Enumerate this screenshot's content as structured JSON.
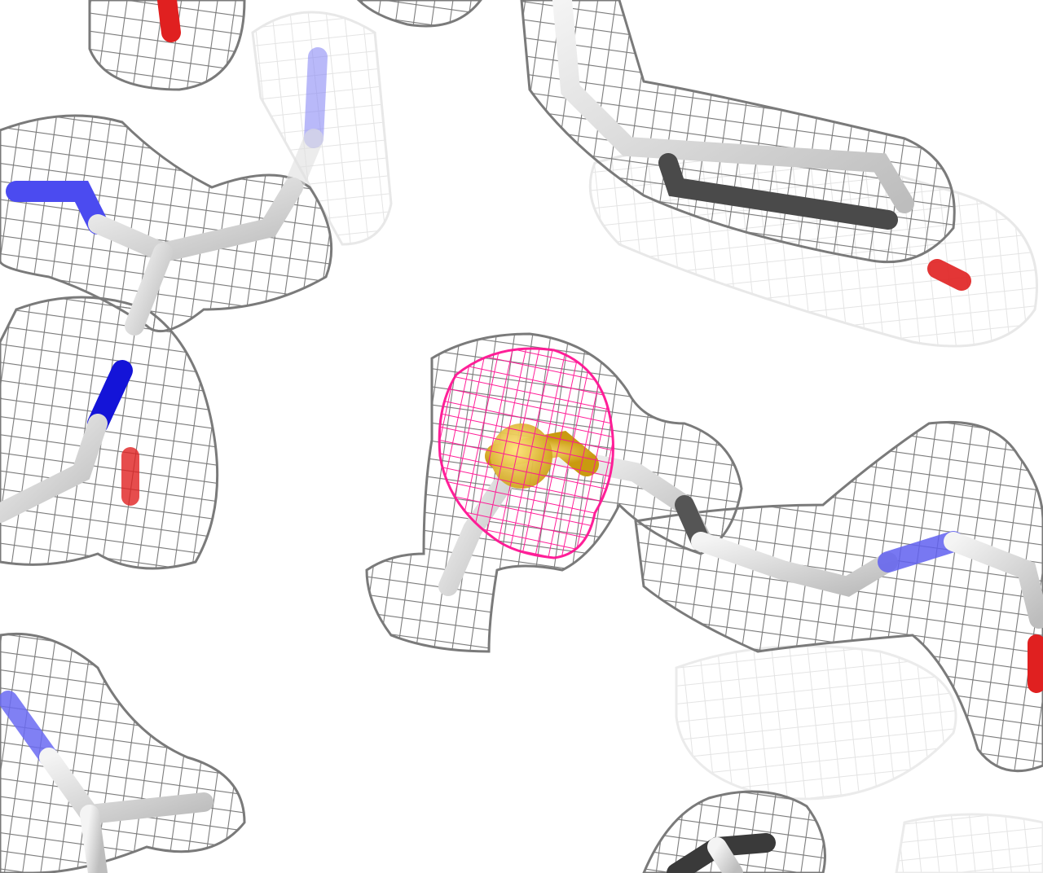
{
  "scene": {
    "background": "#ffffff",
    "colors": {
      "mesh_gray": "#7a7a7a",
      "mesh_gray_faded": "#c8c8c8",
      "mesh_anomalous": "#ff1493",
      "carbon": "#d9d9d9",
      "carbon_dark": "#3a3a3a",
      "nitrogen": "#2a2af0",
      "oxygen": "#e02020",
      "sulfur": "#e8c030"
    },
    "icons": [
      "electron-density-mesh",
      "anomalous-density-mesh",
      "sulfur-atom",
      "stick-bonds"
    ]
  }
}
